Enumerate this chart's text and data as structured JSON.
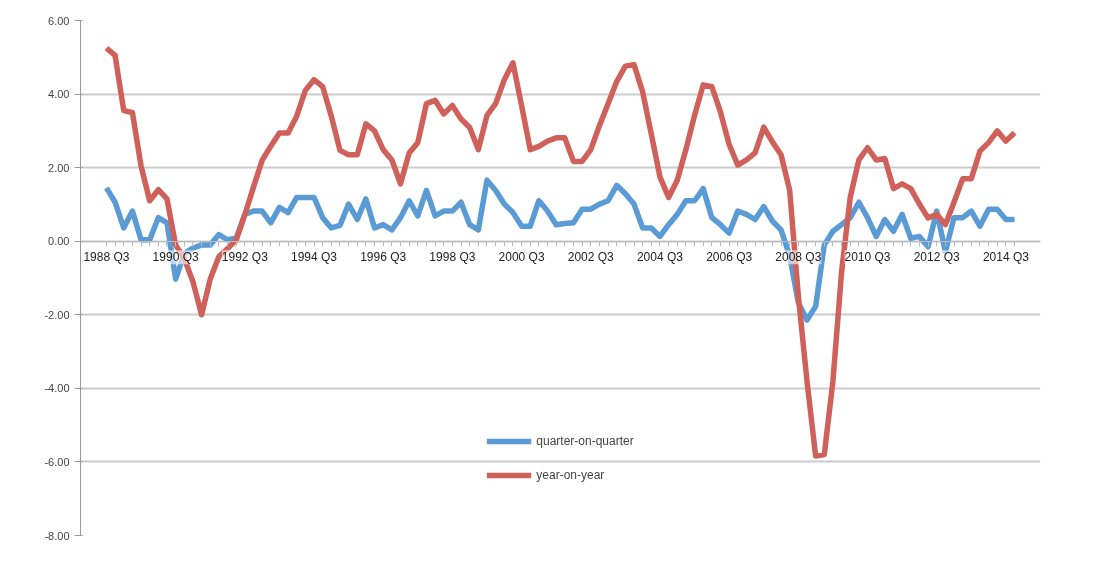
{
  "chart_data": {
    "type": "line",
    "categories": [
      "1988 Q3",
      null,
      null,
      null,
      null,
      null,
      null,
      null,
      "1990 Q3",
      null,
      null,
      null,
      null,
      null,
      null,
      null,
      "1992 Q3",
      null,
      null,
      null,
      null,
      null,
      null,
      null,
      "1994 Q3",
      null,
      null,
      null,
      null,
      null,
      null,
      null,
      "1996 Q3",
      null,
      null,
      null,
      null,
      null,
      null,
      null,
      "1998 Q3",
      null,
      null,
      null,
      null,
      null,
      null,
      null,
      "2000 Q3",
      null,
      null,
      null,
      null,
      null,
      null,
      null,
      "2002 Q3",
      null,
      null,
      null,
      null,
      null,
      null,
      null,
      "2004 Q3",
      null,
      null,
      null,
      null,
      null,
      null,
      null,
      "2006 Q3",
      null,
      null,
      null,
      null,
      null,
      null,
      null,
      "2008 Q3",
      null,
      null,
      null,
      null,
      null,
      null,
      null,
      "2010 Q3",
      null,
      null,
      null,
      null,
      null,
      null,
      null,
      "2012 Q3",
      null,
      null,
      null,
      null,
      null,
      null,
      null,
      "2014 Q3",
      null
    ],
    "series": [
      {
        "name": "quarter-on-quarter",
        "color": "#5b9bd5",
        "values": [
          1.45,
          1.06,
          0.36,
          0.82,
          0.04,
          0.04,
          0.64,
          0.5,
          -1.03,
          -0.33,
          -0.19,
          -0.1,
          -0.1,
          0.18,
          0.04,
          0.08,
          0.73,
          0.82,
          0.82,
          0.5,
          0.92,
          0.78,
          1.19,
          1.19,
          1.19,
          0.64,
          0.36,
          0.43,
          1.01,
          0.59,
          1.15,
          0.36,
          0.45,
          0.31,
          0.64,
          1.1,
          0.69,
          1.38,
          0.69,
          0.82,
          0.82,
          1.06,
          0.45,
          0.31,
          1.66,
          1.38,
          1.01,
          0.78,
          0.41,
          0.41,
          1.1,
          0.82,
          0.45,
          0.48,
          0.5,
          0.87,
          0.87,
          1.01,
          1.1,
          1.52,
          1.29,
          1.01,
          0.36,
          0.36,
          0.13,
          0.45,
          0.73,
          1.1,
          1.1,
          1.43,
          0.64,
          0.45,
          0.22,
          0.82,
          0.73,
          0.59,
          0.94,
          0.55,
          0.31,
          -0.4,
          -1.67,
          -2.14,
          -1.77,
          -0.1,
          0.27,
          0.45,
          0.64,
          1.06,
          0.64,
          0.13,
          0.59,
          0.27,
          0.73,
          0.08,
          0.13,
          -0.15,
          0.82,
          -0.29,
          0.64,
          0.64,
          0.82,
          0.41,
          0.87,
          0.87,
          0.59,
          0.59
        ]
      },
      {
        "name": "year-on-year",
        "color": "#d0605a",
        "values": [
          5.25,
          5.05,
          3.55,
          3.5,
          2.05,
          1.1,
          1.4,
          1.15,
          -0.1,
          -0.47,
          -1.1,
          -2.0,
          -1.03,
          -0.42,
          -0.2,
          0.03,
          0.72,
          1.47,
          2.2,
          2.58,
          2.94,
          2.94,
          3.4,
          4.1,
          4.39,
          4.2,
          3.4,
          2.47,
          2.35,
          2.35,
          3.19,
          3.0,
          2.49,
          2.21,
          1.56,
          2.4,
          2.68,
          3.74,
          3.83,
          3.46,
          3.69,
          3.32,
          3.09,
          2.49,
          3.42,
          3.74,
          4.39,
          4.85,
          3.69,
          2.49,
          2.58,
          2.72,
          2.81,
          2.81,
          2.17,
          2.17,
          2.49,
          3.14,
          3.74,
          4.34,
          4.76,
          4.8,
          4.06,
          2.91,
          1.75,
          1.19,
          1.66,
          2.49,
          3.42,
          4.25,
          4.2,
          3.51,
          2.63,
          2.07,
          2.21,
          2.4,
          3.1,
          2.7,
          2.35,
          1.38,
          -1.49,
          -3.8,
          -5.84,
          -5.8,
          -3.8,
          -0.84,
          1.19,
          2.21,
          2.54,
          2.21,
          2.25,
          1.43,
          1.56,
          1.43,
          1.01,
          0.63,
          0.73,
          0.45,
          1.06,
          1.7,
          1.7,
          2.45,
          2.68,
          3.0,
          2.72,
          2.95
        ]
      }
    ],
    "ylim": [
      -8,
      6
    ],
    "yticks": [
      {
        "value": -8,
        "label": "-8.00"
      },
      {
        "value": -6,
        "label": "-6.00"
      },
      {
        "value": -4,
        "label": "-4.00"
      },
      {
        "value": -2,
        "label": "-2.00"
      },
      {
        "value": 0,
        "label": "0.00"
      },
      {
        "value": 2,
        "label": "2.00"
      },
      {
        "value": 4,
        "label": "4.00"
      },
      {
        "value": 6,
        "label": "6.00"
      }
    ],
    "grid": "y",
    "legend": "bottom",
    "marker": "none",
    "line_style": "solid"
  }
}
